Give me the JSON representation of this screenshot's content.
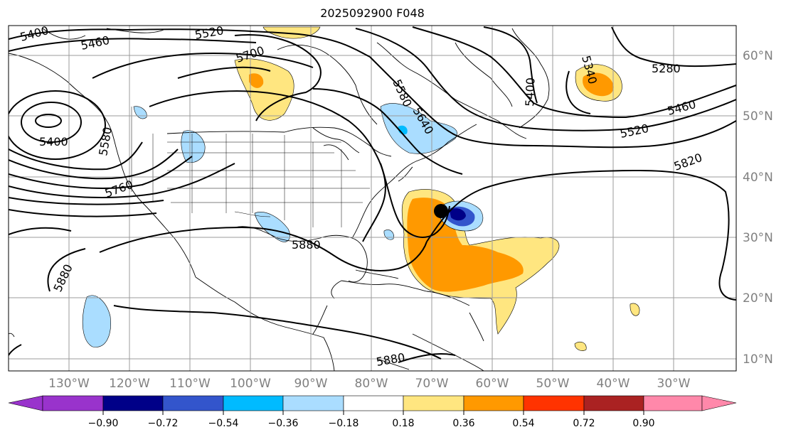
{
  "title": "2025092900 F048",
  "longitude_labels": [
    "130°W",
    "120°W",
    "110°W",
    "100°W",
    "90°W",
    "80°W",
    "70°W",
    "60°W",
    "50°W",
    "40°W",
    "30°W"
  ],
  "latitude_labels": [
    "60°N",
    "50°N",
    "40°N",
    "30°N",
    "20°N",
    "10°N"
  ],
  "contour_labels": [
    "5400",
    "5460",
    "5520",
    "5700",
    "5580",
    "5640",
    "5400",
    "5280",
    "5340",
    "5460",
    "5520",
    "5820",
    "5400",
    "5580",
    "5760",
    "5880",
    "5880",
    "5880"
  ],
  "colorbar": {
    "ticks": [
      "−0.90",
      "−0.72",
      "−0.54",
      "−0.36",
      "−0.18",
      "0.18",
      "0.36",
      "0.54",
      "0.72",
      "0.90"
    ],
    "under_color": "#9933cc",
    "over_color": "#ff88aa",
    "colors": [
      "#9933cc",
      "#000088",
      "#3355cc",
      "#00bbff",
      "#aaddff",
      "#ffffff",
      "#ffe680",
      "#ff9900",
      "#ff3300",
      "#aa2222",
      "#ff88aa"
    ]
  }
}
